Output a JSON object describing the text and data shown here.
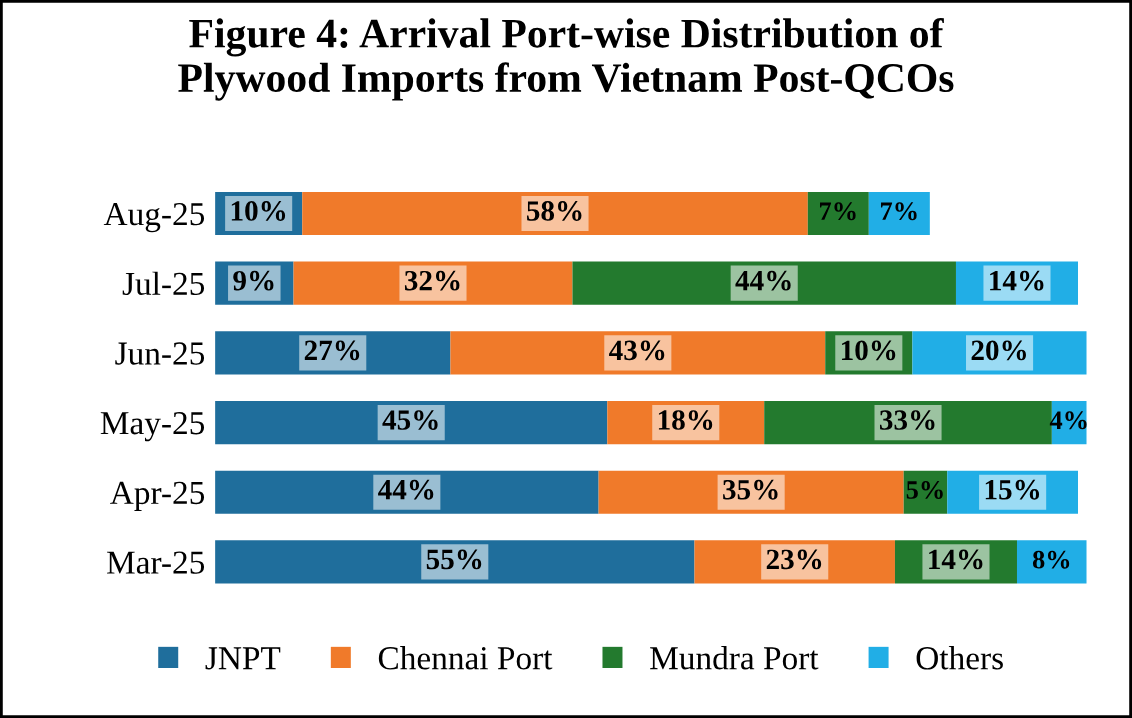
{
  "chart_data": {
    "type": "bar",
    "orientation": "horizontal",
    "stacked": true,
    "title": "Figure 4: Arrival Port-wise Distribution of\nPlywood Imports from Vietnam Post-QCOs",
    "categories": [
      "Aug-25",
      "Jul-25",
      "Jun-25",
      "May-25",
      "Apr-25",
      "Mar-25"
    ],
    "series": [
      {
        "name": "JNPT",
        "color": "#1f6e9c",
        "values": [
          10,
          9,
          27,
          45,
          44,
          55
        ],
        "value_labels": [
          "10%",
          "9%",
          "27%",
          "45%",
          "44%",
          "55%"
        ]
      },
      {
        "name": "Chennai Port",
        "color": "#f07a2a",
        "values": [
          58,
          32,
          43,
          18,
          35,
          23
        ],
        "value_labels": [
          "58%",
          "32%",
          "43%",
          "18%",
          "35%",
          "23%"
        ]
      },
      {
        "name": "Mundra Port",
        "color": "#237a2e",
        "values": [
          7,
          44,
          10,
          33,
          5,
          14
        ],
        "value_labels": [
          "7%",
          "44%",
          "10%",
          "33%",
          "5%",
          "14%"
        ]
      },
      {
        "name": "Others",
        "color": "#21aee6",
        "values": [
          7,
          14,
          20,
          4,
          15,
          8
        ],
        "value_labels": [
          "7%",
          "14%",
          "20%",
          "4%",
          "15%",
          "8%"
        ]
      }
    ],
    "tick_labels": "y",
    "legend": "bottom"
  }
}
